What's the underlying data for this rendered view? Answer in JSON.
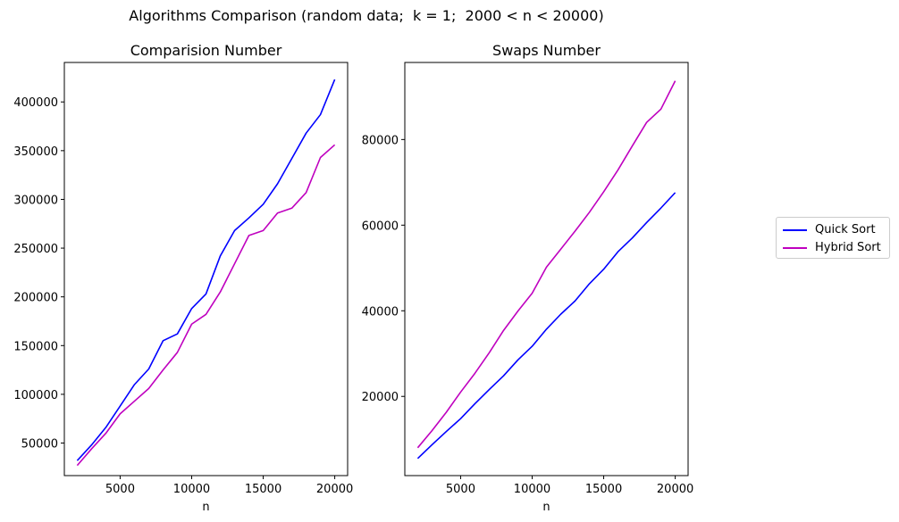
{
  "suptitle": "Algorithms Comparison (random data;  k = 1;  2000 < n < 20000)",
  "colors": {
    "quick_sort": "#0000ff",
    "hybrid_sort": "#bf00bf"
  },
  "legend": {
    "placement": "right",
    "entries": [
      {
        "label": "Quick Sort",
        "color": "#0000ff"
      },
      {
        "label": "Hybrid Sort",
        "color": "#bf00bf"
      }
    ]
  },
  "chart_data": [
    {
      "type": "line",
      "title": "Comparision Number",
      "xlabel": "n",
      "ylabel": "",
      "xlim": [
        1100,
        20900
      ],
      "ylim": [
        16600,
        440500
      ],
      "xticks": [
        5000,
        10000,
        15000,
        20000
      ],
      "yticks": [
        50000,
        100000,
        150000,
        200000,
        250000,
        300000,
        350000,
        400000
      ],
      "grid": false,
      "x": [
        2000,
        3000,
        4000,
        5000,
        6000,
        7000,
        8000,
        9000,
        10000,
        11000,
        12000,
        13000,
        14000,
        15000,
        16000,
        17000,
        18000,
        19000,
        20000
      ],
      "series": [
        {
          "name": "Quick Sort",
          "color": "#0000ff",
          "values": [
            32000,
            48000,
            66000,
            88000,
            110000,
            126000,
            155000,
            162000,
            188000,
            203000,
            242000,
            268000,
            281000,
            295000,
            316000,
            342000,
            368000,
            387000,
            423000
          ]
        },
        {
          "name": "Hybrid Sort",
          "color": "#bf00bf",
          "values": [
            27000,
            44000,
            60000,
            80000,
            93000,
            106000,
            125000,
            143000,
            172000,
            182000,
            205000,
            234000,
            263000,
            268000,
            286000,
            291000,
            307000,
            343000,
            356000
          ]
        }
      ]
    },
    {
      "type": "line",
      "title": "Swaps Number",
      "xlabel": "n",
      "ylabel": "",
      "xlim": [
        1100,
        20900
      ],
      "ylim": [
        1500,
        98000
      ],
      "xticks": [
        5000,
        10000,
        15000,
        20000
      ],
      "yticks": [
        20000,
        40000,
        60000,
        80000
      ],
      "grid": false,
      "x": [
        2000,
        3000,
        4000,
        5000,
        6000,
        7000,
        8000,
        9000,
        10000,
        11000,
        12000,
        13000,
        14000,
        15000,
        16000,
        17000,
        18000,
        19000,
        20000
      ],
      "series": [
        {
          "name": "Quick Sort",
          "color": "#0000ff",
          "values": [
            5500,
            8700,
            11800,
            14800,
            18300,
            21600,
            24800,
            28500,
            31700,
            35700,
            39200,
            42300,
            46300,
            49700,
            53800,
            57000,
            60600,
            64000,
            67600
          ]
        },
        {
          "name": "Hybrid Sort",
          "color": "#bf00bf",
          "values": [
            8000,
            12000,
            16300,
            21000,
            25400,
            30200,
            35400,
            39900,
            44100,
            50200,
            54400,
            58600,
            63000,
            67800,
            72900,
            78500,
            84000,
            87100,
            93700
          ]
        }
      ]
    }
  ]
}
